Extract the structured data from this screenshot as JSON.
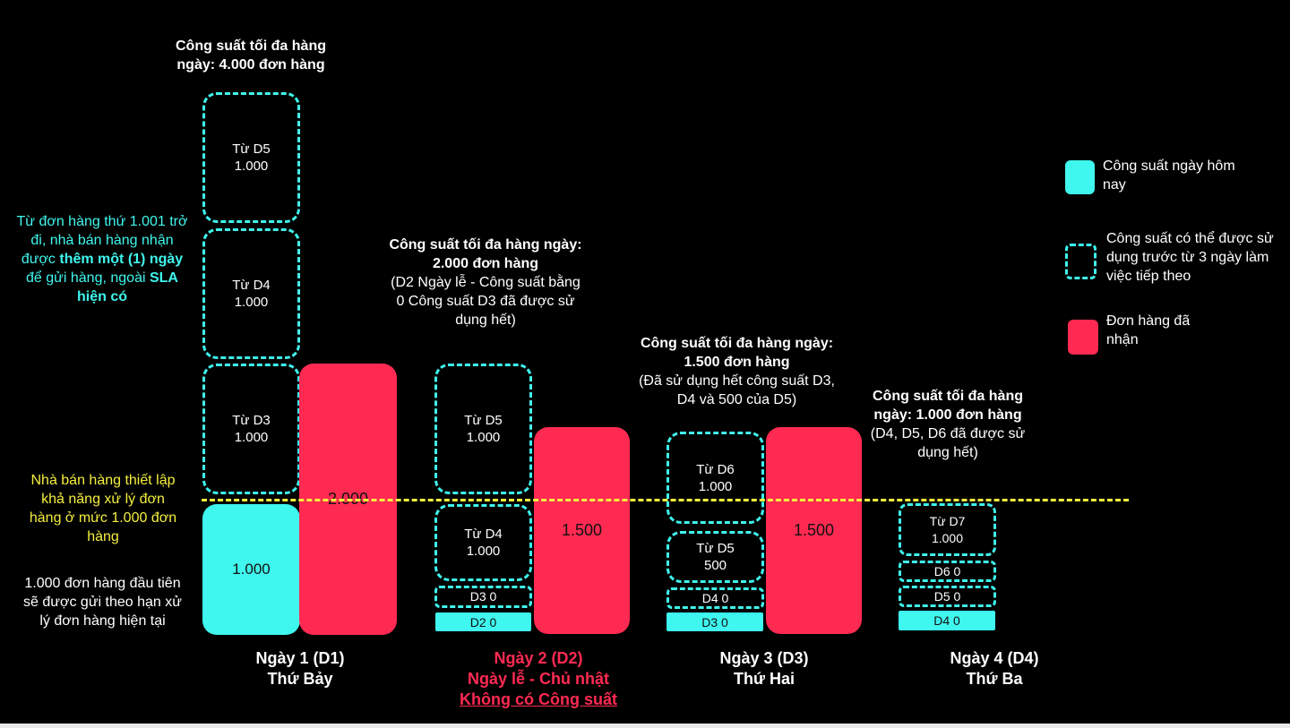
{
  "colors": {
    "background": "#000000",
    "capacity_today": "#3ff7ee",
    "orders_received": "#ff2a52",
    "threshold_line": "#f5ef3e"
  },
  "left_notes": {
    "extra_day": {
      "part1": "Từ đơn hàng thứ 1.001 trở đi, nhà bán hàng nhận được ",
      "bold1": "thêm một (1) ngày",
      "part2": " để gửi hàng, ngoài ",
      "bold2": "SLA hiện có"
    },
    "threshold": "Nhà bán hàng thiết lập khả năng xử lý đơn hàng ở mức 1.000 đơn hàng",
    "first_orders": "1.000 đơn hàng đầu tiên sẽ được gửi theo hạn xử lý đơn hàng hiện tại"
  },
  "days": [
    {
      "title_bold": "Công suất tối đa hàng ngày: 4.000 đơn hàng",
      "note": "",
      "boxes": [
        {
          "label": "Từ D5",
          "value": "1.000"
        },
        {
          "label": "Từ D4",
          "value": "1.000"
        },
        {
          "label": "Từ D3",
          "value": "1.000"
        }
      ],
      "today": "1.000",
      "orders": "2.000",
      "day_name": "Ngày 1 (D1)",
      "weekday": "Thứ Bảy"
    },
    {
      "title_bold": "Công suất tối đa hàng ngày: 2.000 đơn hàng",
      "note": "(D2 Ngày lễ - Công suất bằng 0 Công suất D3 đã được sử dụng hết)",
      "boxes": [
        {
          "label": "Từ D5",
          "value": "1.000"
        },
        {
          "label": "Từ D4",
          "value": "1.000"
        },
        {
          "label": "D3 0",
          "value": ""
        }
      ],
      "today": "D2 0",
      "orders": "1.500",
      "day_name": "Ngày 2 (D2)",
      "weekday": "Ngày lễ - Chủ nhật",
      "extra": "Không có Công suất"
    },
    {
      "title_bold": "Công suất tối đa hàng ngày: 1.500 đơn hàng",
      "note": "(Đã sử dụng hết công suất D3, D4 và 500 của D5)",
      "boxes": [
        {
          "label": "Từ D6",
          "value": "1.000"
        },
        {
          "label": "Từ D5",
          "value": "500"
        },
        {
          "label": "D4 0",
          "value": ""
        }
      ],
      "today": "D3 0",
      "orders": "1.500",
      "day_name": "Ngày 3 (D3)",
      "weekday": "Thứ Hai"
    },
    {
      "title_bold": "Công suất tối đa hàng ngày: 1.000 đơn hàng",
      "note": "(D4, D5, D6 đã được sử dụng hết)",
      "boxes": [
        {
          "label": "Từ D7",
          "value": "1.000"
        },
        {
          "label": "D6 0",
          "value": ""
        },
        {
          "label": "D5 0",
          "value": ""
        }
      ],
      "today": "D4 0",
      "day_name": "Ngày 4 (D4)",
      "weekday": "Thứ Ba"
    }
  ],
  "legend": [
    {
      "key": "today",
      "label": "Công suất ngày hôm nay"
    },
    {
      "key": "future",
      "label": "Công suất có thể được sử dụng trước từ 3 ngày làm việc tiếp theo"
    },
    {
      "key": "orders",
      "label": "Đơn hàng đã nhận"
    }
  ]
}
